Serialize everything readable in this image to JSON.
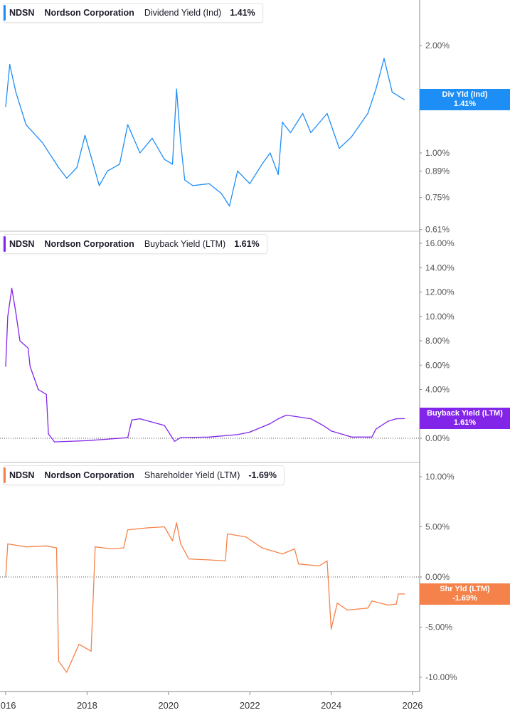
{
  "chart_data": [
    {
      "type": "line",
      "legend": {
        "ticker": "NDSN",
        "company": "Nordson Corporation",
        "metric": "Dividend Yield (Ind)",
        "value": "1.41%"
      },
      "tag": {
        "label": "Div Yld (Ind)",
        "value": "1.41%"
      },
      "color": "#1e8ef7",
      "yscale": "log",
      "ylim": [
        0.61,
        2.4
      ],
      "yticks": [
        {
          "v": 2.0,
          "label": "2.00%"
        },
        {
          "v": 1.0,
          "label": "1.00%"
        },
        {
          "v": 0.89,
          "label": "0.89%"
        },
        {
          "v": 0.75,
          "label": "0.75%"
        },
        {
          "v": 0.61,
          "label": "0.61%"
        }
      ],
      "x": [
        2016.0,
        2016.1,
        2016.25,
        2016.5,
        2016.9,
        2017.3,
        2017.5,
        2017.75,
        2017.95,
        2018.2,
        2018.3,
        2018.5,
        2018.8,
        2019.0,
        2019.3,
        2019.6,
        2019.9,
        2020.1,
        2020.2,
        2020.3,
        2020.4,
        2020.6,
        2021.0,
        2021.3,
        2021.5,
        2021.7,
        2022.0,
        2022.3,
        2022.5,
        2022.7,
        2022.8,
        2023.0,
        2023.3,
        2023.5,
        2023.9,
        2024.2,
        2024.5,
        2024.9,
        2025.1,
        2025.3,
        2025.5,
        2025.8
      ],
      "y": [
        1.35,
        1.77,
        1.48,
        1.2,
        1.07,
        0.91,
        0.85,
        0.91,
        1.12,
        0.89,
        0.81,
        0.89,
        0.93,
        1.2,
        1.0,
        1.1,
        0.96,
        0.93,
        1.51,
        1.07,
        0.84,
        0.81,
        0.82,
        0.77,
        0.71,
        0.89,
        0.82,
        0.93,
        1.0,
        0.87,
        1.22,
        1.14,
        1.29,
        1.14,
        1.29,
        1.03,
        1.11,
        1.29,
        1.51,
        1.84,
        1.48,
        1.41
      ]
    },
    {
      "type": "line",
      "legend": {
        "ticker": "NDSN",
        "company": "Nordson Corporation",
        "metric": "Buyback Yield (LTM)",
        "value": "1.61%"
      },
      "tag": {
        "label": "Buyback Yield (LTM)",
        "value": "1.61%"
      },
      "color": "#8225e8",
      "ylim": [
        -0.6,
        16.3
      ],
      "yticks": [
        {
          "v": 16,
          "label": "16.00%"
        },
        {
          "v": 14,
          "label": "14.00%"
        },
        {
          "v": 12,
          "label": "12.00%"
        },
        {
          "v": 10,
          "label": "10.00%"
        },
        {
          "v": 8,
          "label": "8.00%"
        },
        {
          "v": 6,
          "label": "6.00%"
        },
        {
          "v": 4,
          "label": "4.00%"
        },
        {
          "v": 0,
          "label": "0.00%"
        }
      ],
      "x": [
        2016.0,
        2016.05,
        2016.15,
        2016.25,
        2016.35,
        2016.55,
        2016.6,
        2016.8,
        2017.0,
        2017.05,
        2017.2,
        2018.0,
        2019.0,
        2019.1,
        2019.3,
        2019.9,
        2020.15,
        2020.3,
        2021.0,
        2021.7,
        2022.0,
        2022.5,
        2022.7,
        2022.9,
        2023.5,
        2023.8,
        2024.0,
        2024.5,
        2025.0,
        2025.1,
        2025.4,
        2025.6,
        2025.8
      ],
      "y": [
        5.9,
        10,
        12.3,
        10.3,
        8,
        7.4,
        5.9,
        4.0,
        3.6,
        0.35,
        -0.3,
        -0.2,
        0.05,
        1.5,
        1.6,
        1.05,
        -0.25,
        0.05,
        0.1,
        0.3,
        0.5,
        1.2,
        1.6,
        1.9,
        1.6,
        1.05,
        0.6,
        0.1,
        0.1,
        0.75,
        1.4,
        1.6,
        1.61
      ]
    },
    {
      "type": "line",
      "legend": {
        "ticker": "NDSN",
        "company": "Nordson Corporation",
        "metric": "Shareholder Yield (LTM)",
        "value": "-1.69%"
      },
      "tag": {
        "label": "Shr Yld (LTM)",
        "value": "-1.69%"
      },
      "color": "#f5824a",
      "ylim": [
        -11.5,
        10.5
      ],
      "yticks": [
        {
          "v": 10,
          "label": "10.00%"
        },
        {
          "v": 5,
          "label": "5.00%"
        },
        {
          "v": 0,
          "label": "0.00%"
        },
        {
          "v": -5,
          "label": "-5.00%"
        },
        {
          "v": -10,
          "label": "-10.00%"
        }
      ],
      "x": [
        2016.0,
        2016.05,
        2016.5,
        2017.0,
        2017.25,
        2017.3,
        2017.5,
        2017.8,
        2018.1,
        2018.2,
        2018.6,
        2018.9,
        2019.0,
        2019.5,
        2019.9,
        2020.1,
        2020.2,
        2020.3,
        2020.5,
        2021.0,
        2021.4,
        2021.45,
        2021.9,
        2022.3,
        2022.8,
        2023.1,
        2023.2,
        2023.7,
        2023.9,
        2024.0,
        2024.15,
        2024.4,
        2024.9,
        2025.0,
        2025.4,
        2025.6,
        2025.65,
        2025.8
      ],
      "y": [
        0,
        3.3,
        3.0,
        3.1,
        2.9,
        -8.4,
        -9.5,
        -6.7,
        -7.4,
        3.0,
        2.8,
        2.9,
        4.7,
        4.9,
        5.0,
        3.6,
        5.4,
        3.3,
        1.8,
        1.7,
        1.6,
        4.3,
        4.0,
        2.9,
        2.3,
        2.8,
        1.3,
        1.1,
        1.6,
        -5.2,
        -2.6,
        -3.3,
        -3.1,
        -2.4,
        -2.8,
        -2.7,
        -1.7,
        -1.69
      ]
    }
  ],
  "xaxis": {
    "ticks": [
      {
        "v": 2016,
        "label": "2016"
      },
      {
        "v": 2018,
        "label": "2018"
      },
      {
        "v": 2020,
        "label": "2020"
      },
      {
        "v": 2022,
        "label": "2022"
      },
      {
        "v": 2024,
        "label": "2024"
      },
      {
        "v": 2026,
        "label": "2026"
      }
    ]
  }
}
